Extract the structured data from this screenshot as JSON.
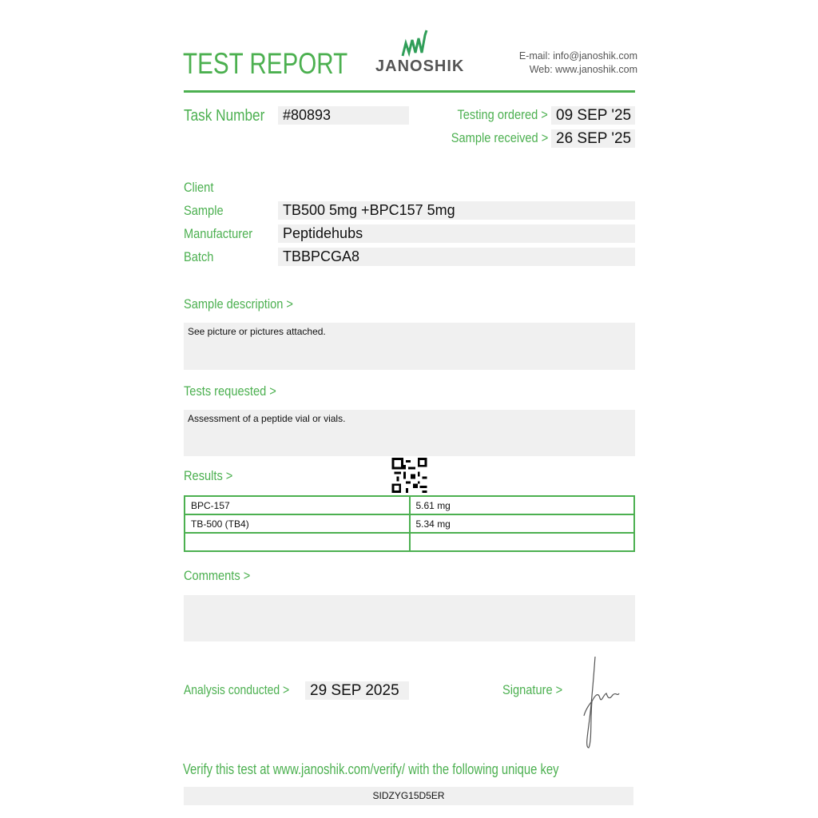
{
  "header": {
    "title": "TEST REPORT",
    "logo_text": "JANOSHIK",
    "email_label": "E-mail:",
    "email": "info@janoshik.com",
    "web_label": "Web:",
    "web": "www.janoshik.com"
  },
  "task": {
    "label": "Task Number",
    "value": "#80893",
    "testing_ordered_label": "Testing ordered  >",
    "testing_ordered": "09 SEP '25",
    "sample_received_label": "Sample received >",
    "sample_received": "26 SEP '25"
  },
  "info": [
    {
      "label": "Client",
      "value": ""
    },
    {
      "label": "Sample",
      "value": "TB500 5mg +BPC157 5mg"
    },
    {
      "label": "Manufacturer",
      "value": "Peptidehubs"
    },
    {
      "label": "Batch",
      "value": "TBBPCGA8"
    }
  ],
  "sample_description": {
    "label": "Sample description >",
    "value": "See picture or pictures attached."
  },
  "tests_requested": {
    "label": "Tests requested >",
    "value": "Assessment of a peptide vial or vials."
  },
  "results": {
    "label": "Results >",
    "rows": [
      {
        "name": "BPC-157",
        "value": "5.61 mg"
      },
      {
        "name": "TB-500 (TB4)",
        "value": "5.34 mg"
      },
      {
        "name": "",
        "value": ""
      }
    ]
  },
  "comments": {
    "label": "Comments >",
    "value": ""
  },
  "analysis": {
    "label": "Analysis conducted >",
    "value": "29 SEP 2025"
  },
  "signature": {
    "label": "Signature >"
  },
  "verify": {
    "text": "Verify this test at www.janoshik.com/verify/ with the following unique key",
    "key": "SIDZYG15D5ER"
  },
  "colors": {
    "accent": "#4cb050",
    "field_bg": "#f0f0f0"
  }
}
